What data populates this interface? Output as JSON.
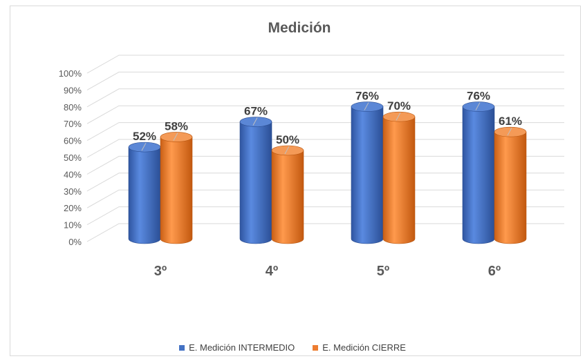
{
  "chart_data": {
    "type": "bar",
    "title": "Medición",
    "categories": [
      "3º",
      "4º",
      "5º",
      "6º"
    ],
    "series": [
      {
        "name": "E. Medición  INTERMEDIO",
        "values": [
          52,
          67,
          76,
          76
        ],
        "labels": [
          "52%",
          "67%",
          "76%",
          "76%"
        ],
        "color": "#4472c4"
      },
      {
        "name": "E. Medición  CIERRE",
        "values": [
          58,
          50,
          70,
          61
        ],
        "labels": [
          "58%",
          "50%",
          "70%",
          "61%"
        ],
        "color": "#ed7d31"
      }
    ],
    "yticks": [
      "0%",
      "10%",
      "20%",
      "30%",
      "40%",
      "50%",
      "60%",
      "70%",
      "80%",
      "90%",
      "100%"
    ],
    "ylim": [
      0,
      100
    ],
    "grid": true,
    "legend": "bottom"
  }
}
